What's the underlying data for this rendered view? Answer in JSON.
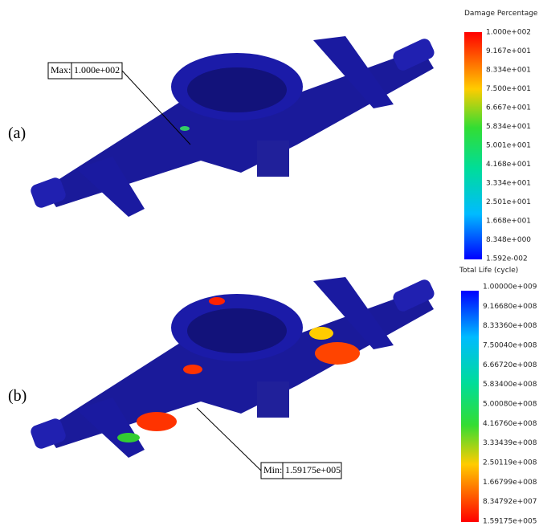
{
  "panels": [
    {
      "label": "(a)",
      "legend": {
        "title": "Damage Percentage",
        "ticks": [
          "1.000e+002",
          "9.167e+001",
          "8.334e+001",
          "7.500e+001",
          "6.667e+001",
          "5.834e+001",
          "5.001e+001",
          "4.168e+001",
          "3.334e+001",
          "2.501e+001",
          "1.668e+001",
          "8.348e+000",
          "1.592e-002"
        ]
      },
      "callout": {
        "key": "Max:",
        "value": "1.000e+002"
      }
    },
    {
      "label": "(b)",
      "legend": {
        "title": "Total Life (cycle)",
        "ticks": [
          "1.00000e+009",
          "9.16680e+008",
          "8.33360e+008",
          "7.50040e+008",
          "6.66720e+008",
          "5.83400e+008",
          "5.00080e+008",
          "4.16760e+008",
          "3.33439e+008",
          "2.50119e+008",
          "1.66799e+008",
          "8.34792e+007",
          "1.59175e+005"
        ]
      },
      "callout": {
        "key": "Min:",
        "value": "1.59175e+005"
      }
    }
  ]
}
